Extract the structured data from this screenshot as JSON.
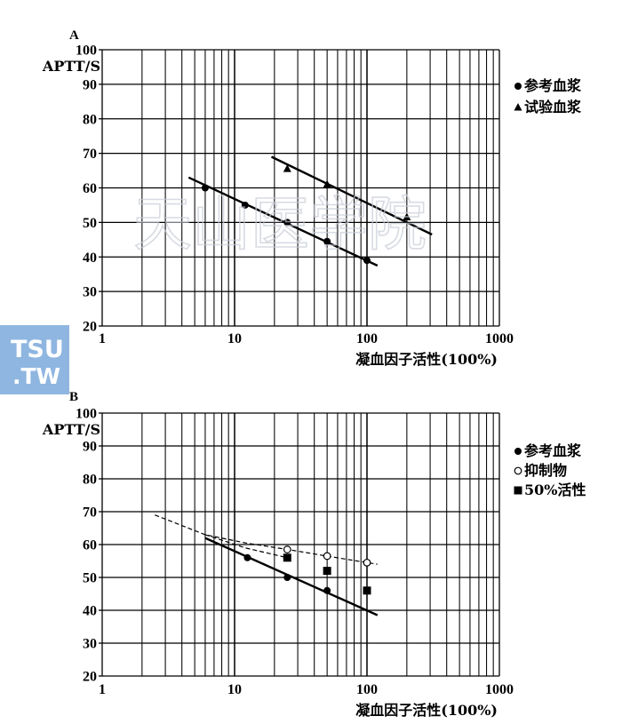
{
  "watermark": {
    "text": "天山医学院"
  },
  "logo": {
    "line1": "TSU",
    "line2": ".TW",
    "bg": "#8fb6e0"
  },
  "chart_data": [
    {
      "type": "scatter",
      "panel_label": "A",
      "ylabel": "APTT/S",
      "xlabel": "凝血因子活性(100%)",
      "x_scale": "log",
      "xlim": [
        1,
        1000
      ],
      "ylim": [
        20,
        100
      ],
      "x_ticks": [
        {
          "v": 1,
          "label": "1"
        },
        {
          "v": 10,
          "label": "10"
        },
        {
          "v": 100,
          "label": "100"
        },
        {
          "v": 1000,
          "label": "1000"
        }
      ],
      "y_ticks": [
        20,
        30,
        40,
        50,
        60,
        70,
        80,
        90,
        100
      ],
      "grid": true,
      "legend_position": "right",
      "series": [
        {
          "name": "参考血浆",
          "marker": "circle",
          "x": [
            6,
            12,
            25,
            50,
            100
          ],
          "y": [
            60,
            55,
            50,
            44.5,
            39
          ],
          "fit": {
            "x": [
              4.5,
              120
            ],
            "y": [
              63,
              37.5
            ],
            "style": "solid"
          }
        },
        {
          "name": "试验血浆",
          "marker": "triangle",
          "x": [
            25,
            50,
            200
          ],
          "y": [
            65.5,
            61,
            51.5
          ],
          "fit": {
            "x": [
              19,
              310
            ],
            "y": [
              69,
              46.5
            ],
            "style": "solid"
          }
        }
      ]
    },
    {
      "type": "scatter",
      "panel_label": "B",
      "ylabel": "APTT/S",
      "xlabel": "凝血因子活性(100%)",
      "x_scale": "log",
      "xlim": [
        1,
        1000
      ],
      "ylim": [
        20,
        100
      ],
      "x_ticks": [
        {
          "v": 1,
          "label": "1"
        },
        {
          "v": 10,
          "label": "10"
        },
        {
          "v": 100,
          "label": "100"
        },
        {
          "v": 1000,
          "label": "1000"
        }
      ],
      "y_ticks": [
        20,
        30,
        40,
        50,
        60,
        70,
        80,
        90,
        100
      ],
      "grid": true,
      "legend_position": "right",
      "series": [
        {
          "name": "参考血浆",
          "marker": "circle",
          "x": [
            12.5,
            25,
            50
          ],
          "y": [
            56,
            50,
            46
          ],
          "fit": {
            "x": [
              6,
              120
            ],
            "y": [
              62,
              38.5
            ],
            "style": "solid"
          }
        },
        {
          "name": "抑制物",
          "marker": "open-circle",
          "x": [
            25,
            50,
            100
          ],
          "y": [
            58.5,
            56.5,
            54.5
          ],
          "fit": {
            "x": [
              2.5,
              6,
              12,
              25,
              50,
              120
            ],
            "y": [
              69,
              63,
              60.5,
              58.5,
              56.5,
              54
            ],
            "style": "dashed"
          }
        },
        {
          "name": "50%活性",
          "marker": "square",
          "x": [
            25,
            50,
            100
          ],
          "y": [
            56,
            52,
            46
          ],
          "fit": {
            "x": [
              6,
              12,
              25
            ],
            "y": [
              63,
              59,
              56
            ],
            "style": "dashed"
          }
        }
      ]
    }
  ]
}
